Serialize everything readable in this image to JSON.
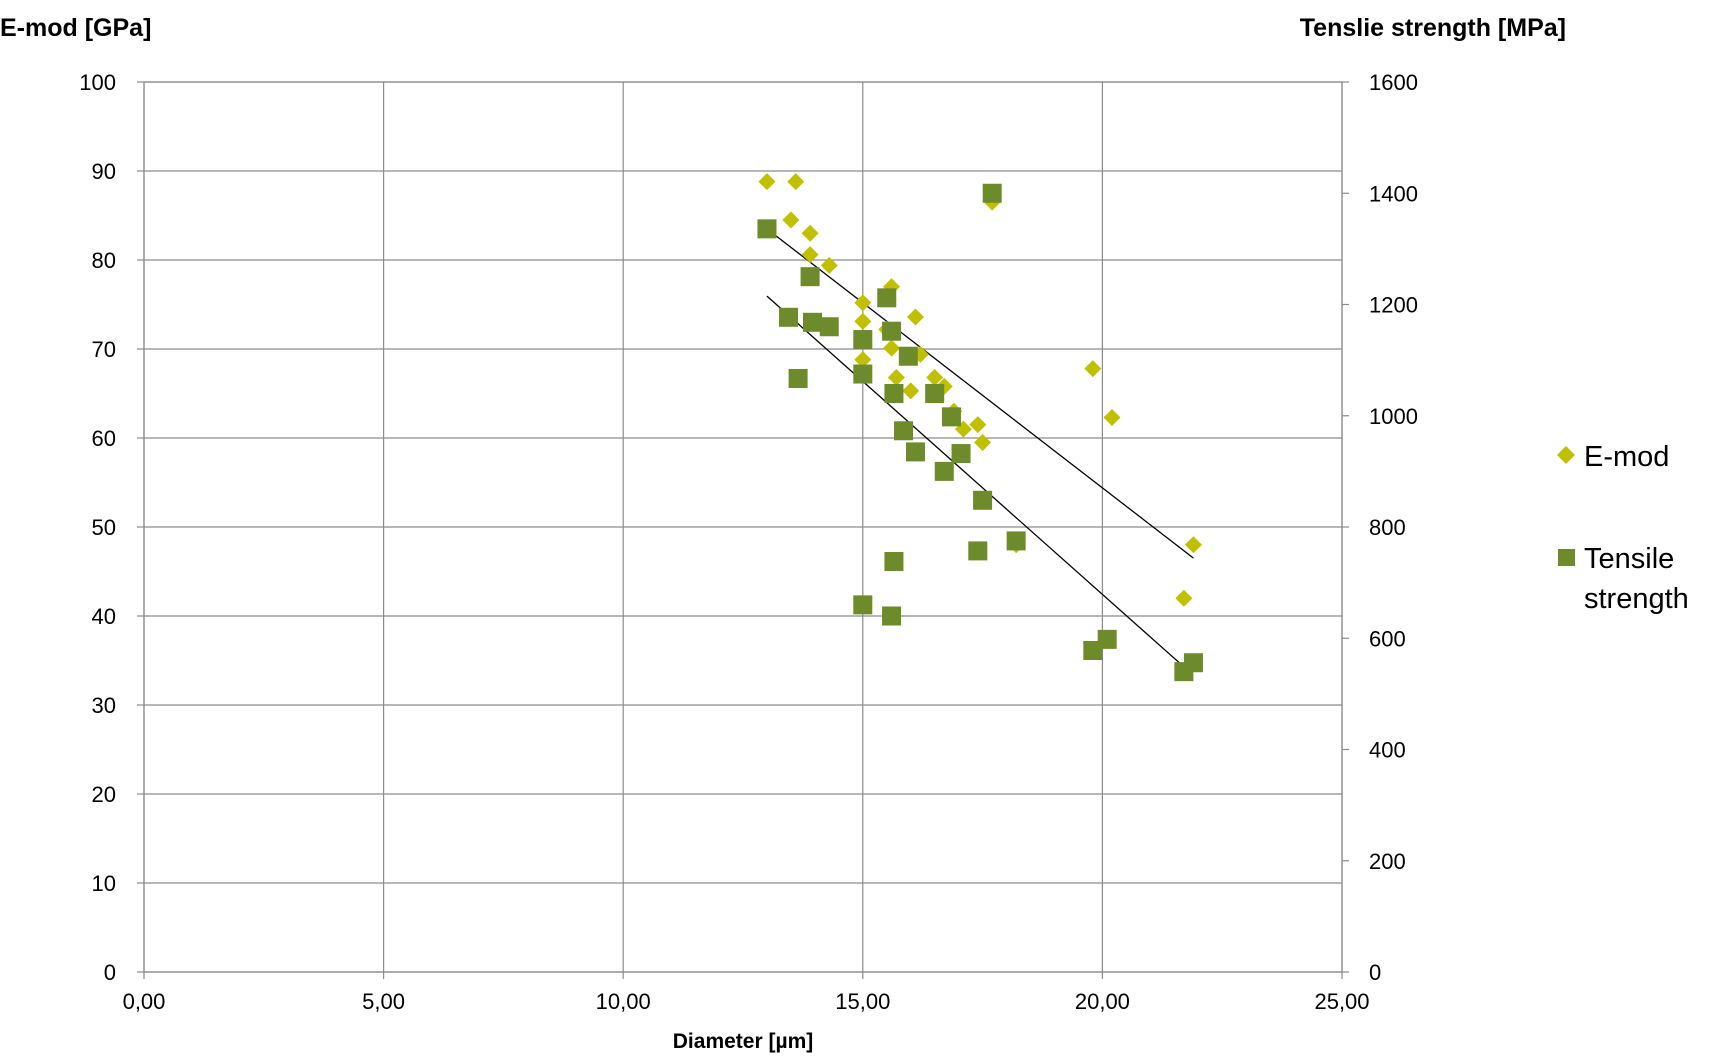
{
  "chart_data": {
    "type": "scatter",
    "y_axis_left_title": "E-mod [GPa]",
    "y_axis_right_title": "Tenslie strength [MPa]",
    "xlabel": "Diameter [µm]",
    "xlim": [
      0,
      25
    ],
    "ylim_left": [
      0,
      100
    ],
    "ylim_right": [
      0,
      1600
    ],
    "x_ticks": [
      "0,00",
      "5,00",
      "10,00",
      "15,00",
      "20,00",
      "25,00"
    ],
    "y_ticks_left": [
      "0",
      "10",
      "20",
      "30",
      "40",
      "50",
      "60",
      "70",
      "80",
      "90",
      "100"
    ],
    "y_ticks_right": [
      "0",
      "200",
      "400",
      "600",
      "800",
      "1000",
      "1200",
      "1400",
      "1600"
    ],
    "grid": true,
    "legend_position": "right",
    "series": [
      {
        "name": "E-mod",
        "axis": "left",
        "marker": "diamond",
        "color": "#c0c000",
        "points": [
          [
            13.0,
            88.8
          ],
          [
            13.6,
            88.8
          ],
          [
            13.5,
            84.5
          ],
          [
            13.9,
            83.0
          ],
          [
            13.9,
            80.6
          ],
          [
            14.3,
            79.4
          ],
          [
            15.0,
            75.2
          ],
          [
            15.0,
            73.1
          ],
          [
            15.0,
            68.8
          ],
          [
            15.6,
            77.0
          ],
          [
            15.5,
            72.2
          ],
          [
            15.6,
            70.1
          ],
          [
            16.1,
            73.6
          ],
          [
            16.2,
            69.4
          ],
          [
            15.7,
            66.8
          ],
          [
            16.0,
            65.3
          ],
          [
            16.5,
            66.8
          ],
          [
            16.7,
            65.8
          ],
          [
            16.9,
            63.0
          ],
          [
            17.1,
            61.0
          ],
          [
            17.4,
            61.5
          ],
          [
            17.5,
            59.5
          ],
          [
            17.7,
            86.5
          ],
          [
            18.2,
            48.0
          ],
          [
            19.8,
            67.8
          ],
          [
            20.2,
            62.3
          ],
          [
            21.7,
            42.0
          ],
          [
            21.9,
            48.0
          ]
        ],
        "trendline": [
          [
            13.0,
            83.5
          ],
          [
            21.9,
            46.5
          ]
        ]
      },
      {
        "name": "Tensile strength",
        "axis": "right",
        "marker": "square",
        "color": "#6e8b2b",
        "points": [
          [
            13.0,
            1336
          ],
          [
            13.45,
            1177
          ],
          [
            13.65,
            1067
          ],
          [
            13.9,
            1250
          ],
          [
            13.95,
            1168
          ],
          [
            14.3,
            1160
          ],
          [
            15.0,
            1137
          ],
          [
            15.0,
            1075
          ],
          [
            15.0,
            660
          ],
          [
            15.5,
            1212
          ],
          [
            15.6,
            1152
          ],
          [
            15.65,
            1040
          ],
          [
            15.6,
            640
          ],
          [
            15.65,
            738
          ],
          [
            15.85,
            973
          ],
          [
            15.95,
            1107
          ],
          [
            16.1,
            935
          ],
          [
            16.5,
            1040
          ],
          [
            16.7,
            900
          ],
          [
            16.85,
            998
          ],
          [
            17.05,
            932
          ],
          [
            17.4,
            757
          ],
          [
            17.5,
            848
          ],
          [
            17.7,
            1400
          ],
          [
            18.2,
            775
          ],
          [
            19.8,
            578
          ],
          [
            20.1,
            598
          ],
          [
            21.7,
            540
          ],
          [
            21.9,
            556
          ]
        ],
        "trendline": [
          [
            13.0,
            1215
          ],
          [
            21.8,
            541
          ]
        ]
      }
    ],
    "legend": [
      {
        "label": "E-mod",
        "marker": "diamond",
        "color": "#c0c000"
      },
      {
        "label_lines": [
          "Tensile",
          "strength"
        ],
        "marker": "square",
        "color": "#6e8b2b"
      }
    ]
  }
}
